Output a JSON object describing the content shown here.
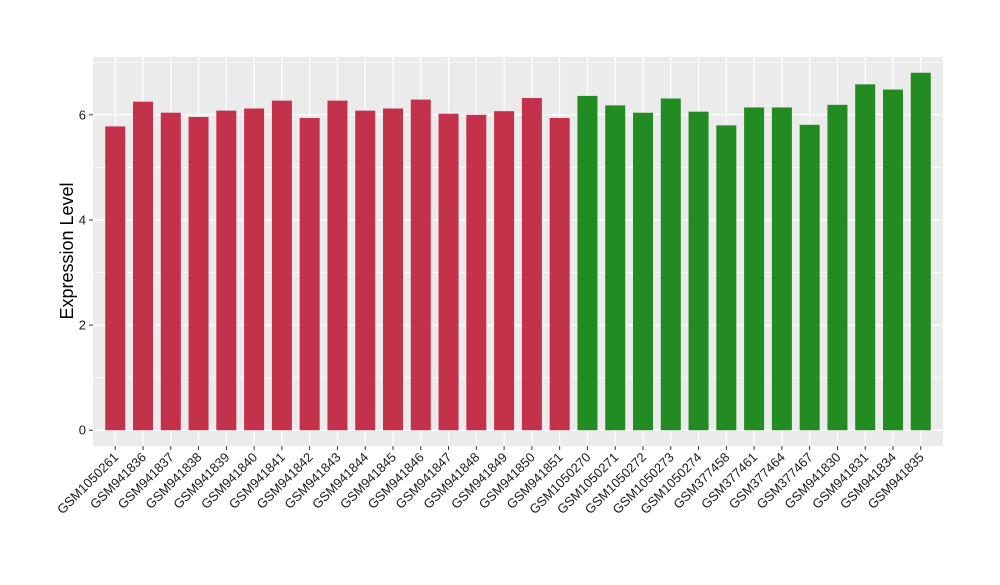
{
  "chart_data": {
    "type": "bar",
    "ylabel": "Expression Level",
    "xlabel": "",
    "ylim": [
      -0.3,
      7.1
    ],
    "yticks": [
      0,
      2,
      4,
      6
    ],
    "grid": true,
    "categories": [
      "GSM1050261",
      "GSM941836",
      "GSM941837",
      "GSM941838",
      "GSM941839",
      "GSM941840",
      "GSM941841",
      "GSM941842",
      "GSM941843",
      "GSM941844",
      "GSM941845",
      "GSM941846",
      "GSM941847",
      "GSM941848",
      "GSM941849",
      "GSM941850",
      "GSM941851",
      "GSM1050270",
      "GSM1050271",
      "GSM1050272",
      "GSM1050273",
      "GSM1050274",
      "GSM377458",
      "GSM377461",
      "GSM377464",
      "GSM377467",
      "GSM941830",
      "GSM941831",
      "GSM941834",
      "GSM941835"
    ],
    "values": [
      5.78,
      6.25,
      6.04,
      5.96,
      6.08,
      6.12,
      6.27,
      5.94,
      6.27,
      6.08,
      6.12,
      6.29,
      6.02,
      6.0,
      6.07,
      6.32,
      5.94,
      6.36,
      6.18,
      6.04,
      6.31,
      6.06,
      5.8,
      6.14,
      6.14,
      5.81,
      6.19,
      6.58,
      6.48,
      6.8
    ],
    "colors": [
      "#C4314B",
      "#C4314B",
      "#C4314B",
      "#C4314B",
      "#C4314B",
      "#C4314B",
      "#C4314B",
      "#C4314B",
      "#C4314B",
      "#C4314B",
      "#C4314B",
      "#C4314B",
      "#C4314B",
      "#C4314B",
      "#C4314B",
      "#C4314B",
      "#C4314B",
      "#228B22",
      "#228B22",
      "#228B22",
      "#228B22",
      "#228B22",
      "#228B22",
      "#228B22",
      "#228B22",
      "#228B22",
      "#228B22",
      "#228B22",
      "#228B22",
      "#228B22"
    ],
    "panel_background": "#EBEBEB",
    "gridline_color": "#FFFFFF"
  }
}
